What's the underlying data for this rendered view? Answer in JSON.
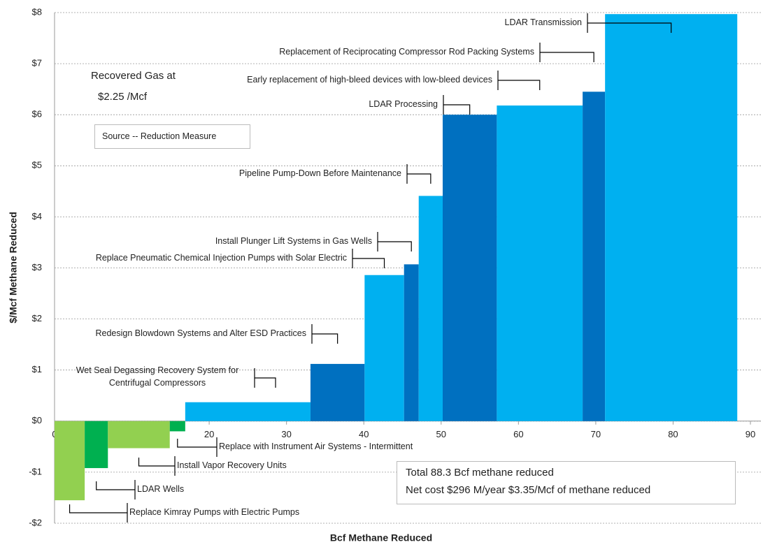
{
  "chart_data": {
    "type": "cost_curve",
    "xlabel": "Bcf Methane Reduced",
    "ylabel": "$/Mcf Methane Reduced",
    "xlim": [
      0,
      90
    ],
    "xticks": [
      0,
      10,
      20,
      30,
      40,
      50,
      60,
      70,
      80,
      90
    ],
    "ylim": [
      -2,
      8
    ],
    "yticks": [
      {
        "value": -2,
        "label": "-$2"
      },
      {
        "value": -1,
        "label": "-$1"
      },
      {
        "value": 0,
        "label": "$0"
      },
      {
        "value": 1,
        "label": "$1"
      },
      {
        "value": 2,
        "label": "$2"
      },
      {
        "value": 3,
        "label": "$3"
      },
      {
        "value": 4,
        "label": "$4"
      },
      {
        "value": 5,
        "label": "$5"
      },
      {
        "value": 6,
        "label": "$6"
      },
      {
        "value": 7,
        "label": "$7"
      },
      {
        "value": 8,
        "label": "$8"
      }
    ],
    "grid": true,
    "categories": [
      "Replace Kimray Pumps with Electric Pumps",
      "LDAR Wells",
      "Install Vapor Recovery Units",
      "Replace with Instrument Air Systems - Intermittent",
      "Wet Seal Degassing Recovery System for Centrifugal Compressors",
      "Redesign Blowdown Systems and Alter ESD Practices",
      "Replace Pneumatic Chemical Injection Pumps with Solar Electric",
      "Install Plunger Lift Systems in Gas Wells",
      "Pipeline Pump-Down Before Maintenance",
      "LDAR Processing",
      "Early replacement of high-bleed devices with low-bleed devices",
      "Replacement of Reciprocating Compressor Rod Packing Systems",
      "LDAR Transmission"
    ],
    "x_start": [
      0,
      3.9,
      6.9,
      14.9,
      16.9,
      33.1,
      40.1,
      45.2,
      47.1,
      50.2,
      57.2,
      68.3,
      71.2
    ],
    "x_end": [
      3.9,
      6.9,
      14.9,
      16.9,
      33.1,
      40.1,
      45.2,
      47.1,
      50.2,
      57.2,
      68.3,
      71.2,
      88.3
    ],
    "values": [
      -1.55,
      -0.92,
      -0.53,
      -0.2,
      0.37,
      1.12,
      2.86,
      3.07,
      4.41,
      6.0,
      6.18,
      6.45,
      7.97
    ],
    "colors": [
      "#92d050",
      "#00b050",
      "#92d050",
      "#00b050",
      "#00b0f0",
      "#0070c0",
      "#00b0f0",
      "#0070c0",
      "#00b0f0",
      "#0070c0",
      "#00b0f0",
      "#0070c0",
      "#00b0f0"
    ],
    "annotations": [
      "Recovered  Gas at",
      "$2.25 /Mcf",
      "Source -- Reduction Measure",
      "Total 88.3 Bcf methane  reduced",
      "Net cost $296 M/year    $3.35/Mcf of methane  reduced"
    ]
  }
}
